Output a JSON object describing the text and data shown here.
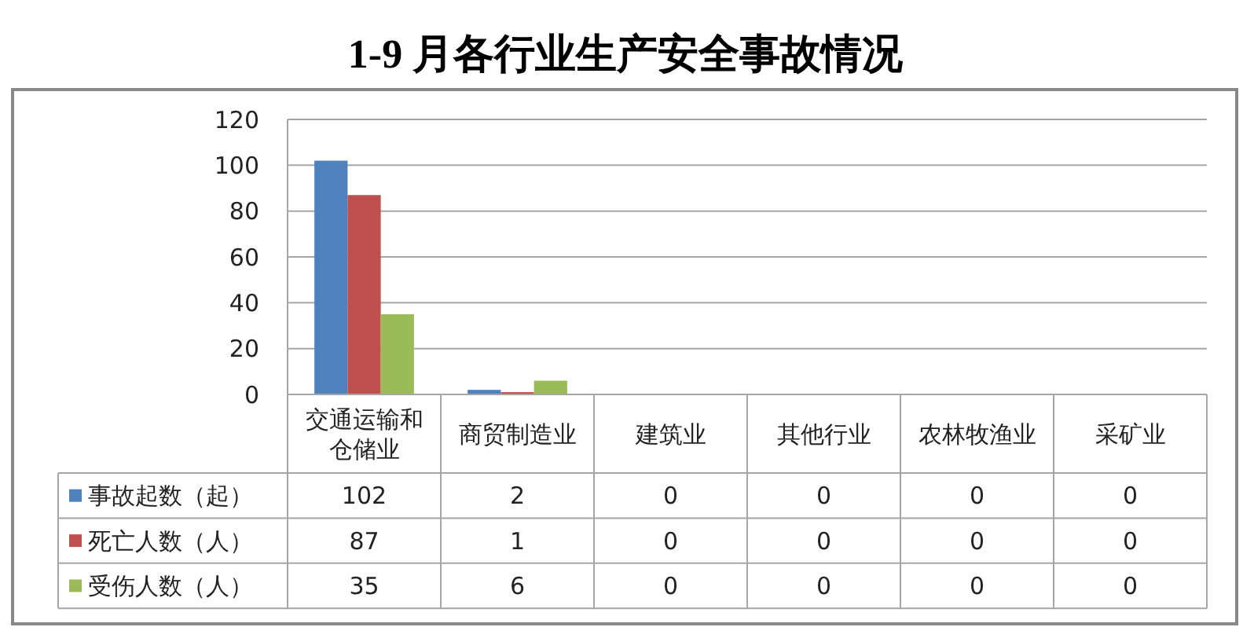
{
  "chart_data": {
    "type": "bar",
    "title": "1-9 月各行业生产安全事故情况",
    "categories": [
      "交通运输和仓储业",
      "商贸制造业",
      "建筑业",
      "其他行业",
      "农林牧渔业",
      "采矿业"
    ],
    "series": [
      {
        "name": "事故起数（起）",
        "color": "#4f81bd",
        "values": [
          102,
          2,
          0,
          0,
          0,
          0
        ]
      },
      {
        "name": "死亡人数（人）",
        "color": "#c0504d",
        "values": [
          87,
          1,
          0,
          0,
          0,
          0
        ]
      },
      {
        "name": "受伤人数（人）",
        "color": "#9bbb59",
        "values": [
          35,
          6,
          0,
          0,
          0,
          0
        ]
      }
    ],
    "ylim": [
      0,
      120
    ],
    "yticks": [
      0,
      20,
      40,
      60,
      80,
      100,
      120
    ],
    "grid": "y",
    "legend": "bottom left",
    "data_labels": true
  }
}
